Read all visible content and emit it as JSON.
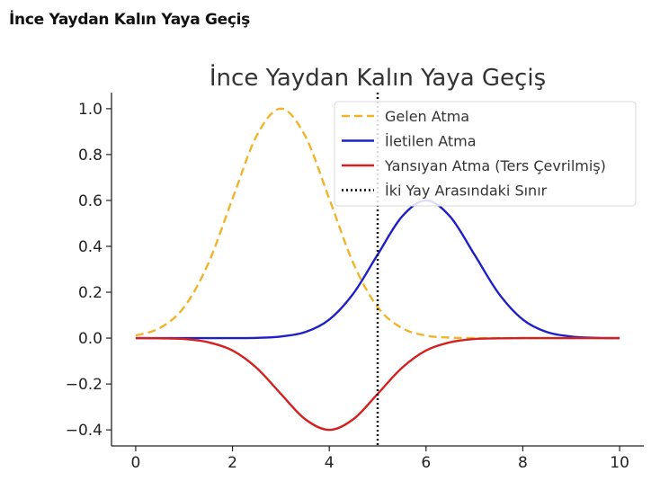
{
  "page": {
    "heading": "İnce Yaydan Kalın Yaya Geçiş"
  },
  "chart_data": {
    "type": "line",
    "title": "İnce Yaydan Kalın Yaya Geçiş",
    "xlabel": "",
    "ylabel": "",
    "xlim": [
      -0.5,
      10.5
    ],
    "ylim": [
      -0.47,
      1.07
    ],
    "xticks": [
      0,
      2,
      4,
      6,
      8,
      10
    ],
    "yticks": [
      -0.4,
      -0.2,
      0.0,
      0.2,
      0.4,
      0.6,
      0.8,
      1.0
    ],
    "ytick_labels": [
      "−0.4",
      "−0.2",
      "0.0",
      "0.2",
      "0.4",
      "0.6",
      "0.8",
      "1.0"
    ],
    "grid": false,
    "legend_position": "top-right",
    "x": [
      0,
      0.5,
      1,
      1.5,
      2,
      2.5,
      3,
      3.5,
      4,
      4.5,
      5,
      5.5,
      6,
      6.5,
      7,
      7.5,
      8,
      8.5,
      9,
      9.5,
      10
    ],
    "series": [
      {
        "name": "Gelen Atma",
        "color": "#f0b429",
        "style": "dashed",
        "values": [
          0.011,
          0.044,
          0.135,
          0.325,
          0.607,
          0.882,
          1.0,
          0.882,
          0.607,
          0.325,
          0.135,
          0.044,
          0.011,
          0.002,
          0.0,
          0.0,
          0.0,
          0.0,
          0.0,
          0.0,
          0.0
        ]
      },
      {
        "name": "İletilen Atma",
        "color": "#1f1fc8",
        "style": "solid",
        "values": [
          0.0,
          0.0,
          0.0,
          0.0,
          0.0,
          0.001,
          0.007,
          0.026,
          0.081,
          0.195,
          0.364,
          0.529,
          0.6,
          0.529,
          0.364,
          0.195,
          0.081,
          0.026,
          0.007,
          0.001,
          0.0
        ]
      },
      {
        "name": "Yansıyan Atma (Ters Çevrilmiş)",
        "color": "#d42020",
        "style": "solid",
        "values": [
          0.0,
          -0.001,
          -0.004,
          -0.018,
          -0.054,
          -0.13,
          -0.243,
          -0.353,
          -0.4,
          -0.353,
          -0.243,
          -0.13,
          -0.054,
          -0.018,
          -0.004,
          -0.001,
          0.0,
          0.0,
          0.0,
          0.0,
          0.0
        ]
      }
    ],
    "boundary": {
      "name": "İki Yay Arasındaki Sınır",
      "x": 5,
      "color": "#000000",
      "style": "dotted"
    }
  }
}
